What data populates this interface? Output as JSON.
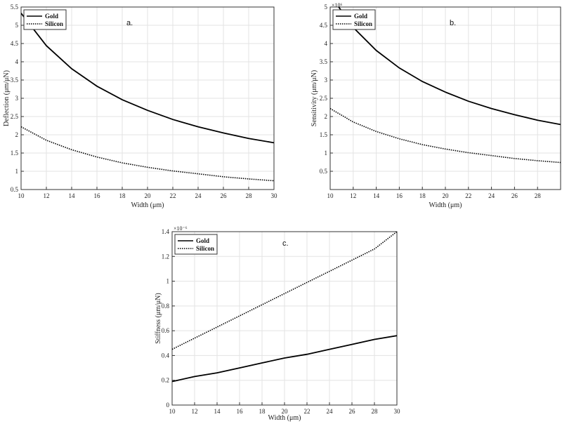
{
  "chart_data": [
    {
      "id": "a",
      "type": "line",
      "panel_label": "a.",
      "xlabel": "Width (μm)",
      "ylabel": "Deflection (μm/μN)",
      "exponent_label": "",
      "xlim": [
        10,
        30
      ],
      "ylim": [
        0.5,
        5.5
      ],
      "xticks": [
        "10",
        "12",
        "14",
        "16",
        "18",
        "20",
        "22",
        "24",
        "26",
        "28",
        "30"
      ],
      "yticks": [
        "0.5",
        "1",
        "1.5",
        "2",
        "2.5",
        "3",
        "3.5",
        "4",
        "4.5",
        "5",
        "5.5"
      ],
      "grid": true,
      "legend_position": "top-left",
      "x": [
        10,
        12,
        14,
        16,
        18,
        20,
        22,
        24,
        26,
        28,
        30
      ],
      "series": [
        {
          "name": "Gold",
          "style": "solid",
          "values": [
            5.33,
            4.44,
            3.81,
            3.33,
            2.96,
            2.67,
            2.42,
            2.22,
            2.05,
            1.9,
            1.78
          ]
        },
        {
          "name": "Silicon",
          "style": "dotted",
          "values": [
            2.22,
            1.85,
            1.59,
            1.39,
            1.23,
            1.11,
            1.01,
            0.93,
            0.85,
            0.79,
            0.74
          ]
        }
      ]
    },
    {
      "id": "b",
      "type": "line",
      "panel_label": "b.",
      "xlabel": "Width (μm)",
      "ylabel": "Sensitivity (μm/μN)",
      "exponent_label": "×10⁶",
      "xlim": [
        10,
        30
      ],
      "ylim": [
        0,
        5
      ],
      "xticks": [
        "10",
        "12",
        "14",
        "16",
        "18",
        "20",
        "22",
        "24",
        "26",
        "28"
      ],
      "yticks": [
        "0.5",
        "1",
        "1.5",
        "2",
        "2.5",
        "3",
        "3.5",
        "4",
        "4.5",
        "5"
      ],
      "grid": true,
      "legend_position": "top-left",
      "x": [
        10,
        12,
        14,
        16,
        18,
        20,
        22,
        24,
        26,
        28,
        30
      ],
      "series": [
        {
          "name": "Gold",
          "style": "solid",
          "values": [
            5.33,
            4.44,
            3.81,
            3.33,
            2.96,
            2.67,
            2.42,
            2.22,
            2.05,
            1.9,
            1.78
          ]
        },
        {
          "name": "Silicon",
          "style": "dotted",
          "values": [
            2.22,
            1.85,
            1.59,
            1.39,
            1.23,
            1.11,
            1.01,
            0.93,
            0.85,
            0.79,
            0.74
          ]
        }
      ]
    },
    {
      "id": "c",
      "type": "line",
      "panel_label": "c.",
      "xlabel": "Width (μm)",
      "ylabel": "Stiffness (μm/μN)",
      "exponent_label": "×10⁻⁶",
      "xlim": [
        10,
        30
      ],
      "ylim": [
        0,
        1.4
      ],
      "xticks": [
        "10",
        "12",
        "14",
        "16",
        "18",
        "20",
        "22",
        "24",
        "26",
        "28",
        "30"
      ],
      "yticks": [
        "0",
        "0.2",
        "0.4",
        "0.6",
        "0.8",
        "1",
        "1.2",
        "1.4"
      ],
      "grid": true,
      "legend_position": "top-left",
      "x": [
        10,
        12,
        14,
        16,
        18,
        20,
        22,
        24,
        26,
        28,
        30
      ],
      "series": [
        {
          "name": "Gold",
          "style": "solid",
          "values": [
            0.19,
            0.23,
            0.26,
            0.3,
            0.34,
            0.38,
            0.41,
            0.45,
            0.49,
            0.53,
            0.56
          ]
        },
        {
          "name": "Silicon",
          "style": "dotted",
          "values": [
            0.45,
            0.54,
            0.63,
            0.72,
            0.81,
            0.9,
            0.99,
            1.08,
            1.17,
            1.26,
            1.4
          ]
        }
      ]
    }
  ]
}
